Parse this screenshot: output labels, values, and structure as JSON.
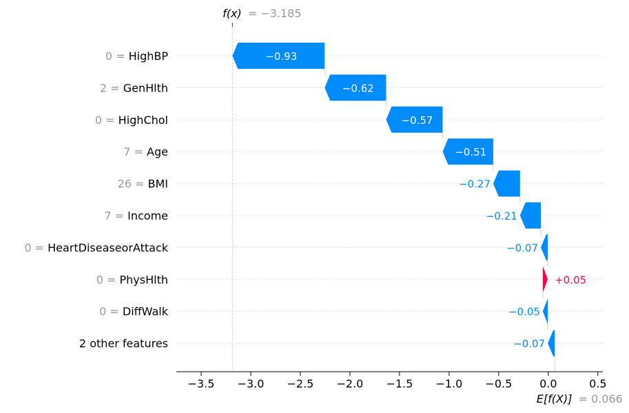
{
  "chart_data": {
    "type": "waterfall",
    "base_value": 0.066,
    "final_value": -3.185,
    "fx_label": "f(x)",
    "fx_text": "= −3.185",
    "efx_label": "E[f(X)]",
    "efx_text": "= 0.066",
    "features": [
      {
        "value": "0",
        "name": "HighBP",
        "shap": -0.93,
        "shap_text": "−0.93"
      },
      {
        "value": "2",
        "name": "GenHlth",
        "shap": -0.62,
        "shap_text": "−0.62"
      },
      {
        "value": "0",
        "name": "HighChol",
        "shap": -0.57,
        "shap_text": "−0.57"
      },
      {
        "value": "7",
        "name": "Age",
        "shap": -0.51,
        "shap_text": "−0.51"
      },
      {
        "value": "26",
        "name": "BMI",
        "shap": -0.27,
        "shap_text": "−0.27"
      },
      {
        "value": "7",
        "name": "Income",
        "shap": -0.21,
        "shap_text": "−0.21"
      },
      {
        "value": "0",
        "name": "HeartDiseaseorAttack",
        "shap": -0.07,
        "shap_text": "−0.07"
      },
      {
        "value": "0",
        "name": "PhysHlth",
        "shap": 0.05,
        "shap_text": "+0.05"
      },
      {
        "value": "0",
        "name": "DiffWalk",
        "shap": -0.05,
        "shap_text": "−0.05"
      },
      {
        "value": "",
        "name": "2 other features",
        "shap": -0.07,
        "shap_text": "−0.07"
      }
    ],
    "xlim": [
      -3.75,
      0.55
    ],
    "xticks": [
      -3.5,
      -3.0,
      -2.5,
      -2.0,
      -1.5,
      -1.0,
      -0.5,
      0.0,
      0.5
    ],
    "xtick_labels": [
      "−3.5",
      "−3.0",
      "−2.5",
      "−2.0",
      "−1.5",
      "−1.0",
      "−0.5",
      "0.0",
      "0.5"
    ],
    "colors": {
      "negative": "#008bfb",
      "positive": "#ff0051",
      "muted": "#999999",
      "grid": "#cccccc"
    }
  }
}
